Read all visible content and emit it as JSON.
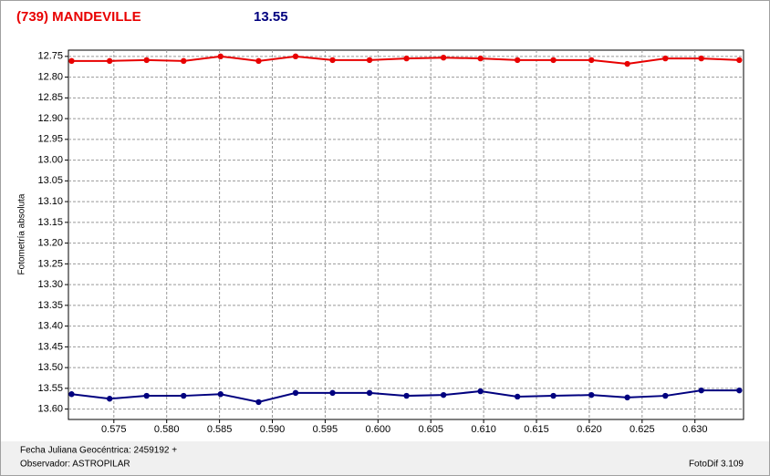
{
  "chart_data": {
    "type": "line",
    "title": "(739) MANDEVILLE",
    "subtitle": "13.55",
    "ylabel": "Fotometría absoluta",
    "footer_left": "Fecha Juliana Geocéntrica: 2459192 +",
    "footer_observer": "Observador: ASTROPILAR",
    "footer_right": "FotoDif 3.109",
    "y_inverted": true,
    "grid": true,
    "xlim": [
      0.5707,
      0.6346
    ],
    "ylim": [
      12.735,
      13.625
    ],
    "xticks": [
      0.575,
      {
        "value": 0.58,
        "label": "0.580"
      },
      0.585,
      {
        "value": 0.59,
        "label": "0.590"
      },
      0.595,
      {
        "value": 0.6,
        "label": "0.600"
      },
      0.605,
      {
        "value": 0.61,
        "label": "0.610"
      },
      0.615,
      {
        "value": 0.62,
        "label": "0.620"
      },
      0.625,
      {
        "value": 0.63,
        "label": "0.630"
      }
    ],
    "yticks": [
      12.75,
      {
        "value": 12.8,
        "label": "12.80"
      },
      12.85,
      {
        "value": 12.9,
        "label": "12.90"
      },
      12.95,
      {
        "value": 13.0,
        "label": "13.00"
      },
      13.05,
      {
        "value": 13.1,
        "label": "13.10"
      },
      13.15,
      {
        "value": 13.2,
        "label": "13.20"
      },
      13.25,
      {
        "value": 13.3,
        "label": "13.30"
      },
      13.35,
      {
        "value": 13.4,
        "label": "13.40"
      },
      13.45,
      {
        "value": 13.5,
        "label": "13.50"
      },
      13.55,
      {
        "value": 13.6,
        "label": "13.60"
      }
    ],
    "x": [
      0.571,
      0.5746,
      0.5781,
      0.5816,
      0.5851,
      0.5887,
      0.5922,
      0.5957,
      0.5992,
      0.6027,
      0.6062,
      0.6097,
      0.6132,
      0.6166,
      0.6202,
      0.6236,
      0.6272,
      0.6306,
      0.6342
    ],
    "series": [
      {
        "color": "#e80000",
        "values": [
          12.761,
          12.761,
          12.759,
          12.761,
          12.75,
          12.761,
          12.75,
          12.759,
          12.759,
          12.755,
          12.753,
          12.755,
          12.759,
          12.759,
          12.759,
          12.768,
          12.755,
          12.755,
          12.759
        ]
      },
      {
        "color": "#00007f",
        "values": [
          13.564,
          13.575,
          13.568,
          13.568,
          13.564,
          13.583,
          13.561,
          13.561,
          13.561,
          13.568,
          13.566,
          13.557,
          13.57,
          13.568,
          13.566,
          13.572,
          13.568,
          13.555,
          13.555
        ]
      }
    ]
  }
}
